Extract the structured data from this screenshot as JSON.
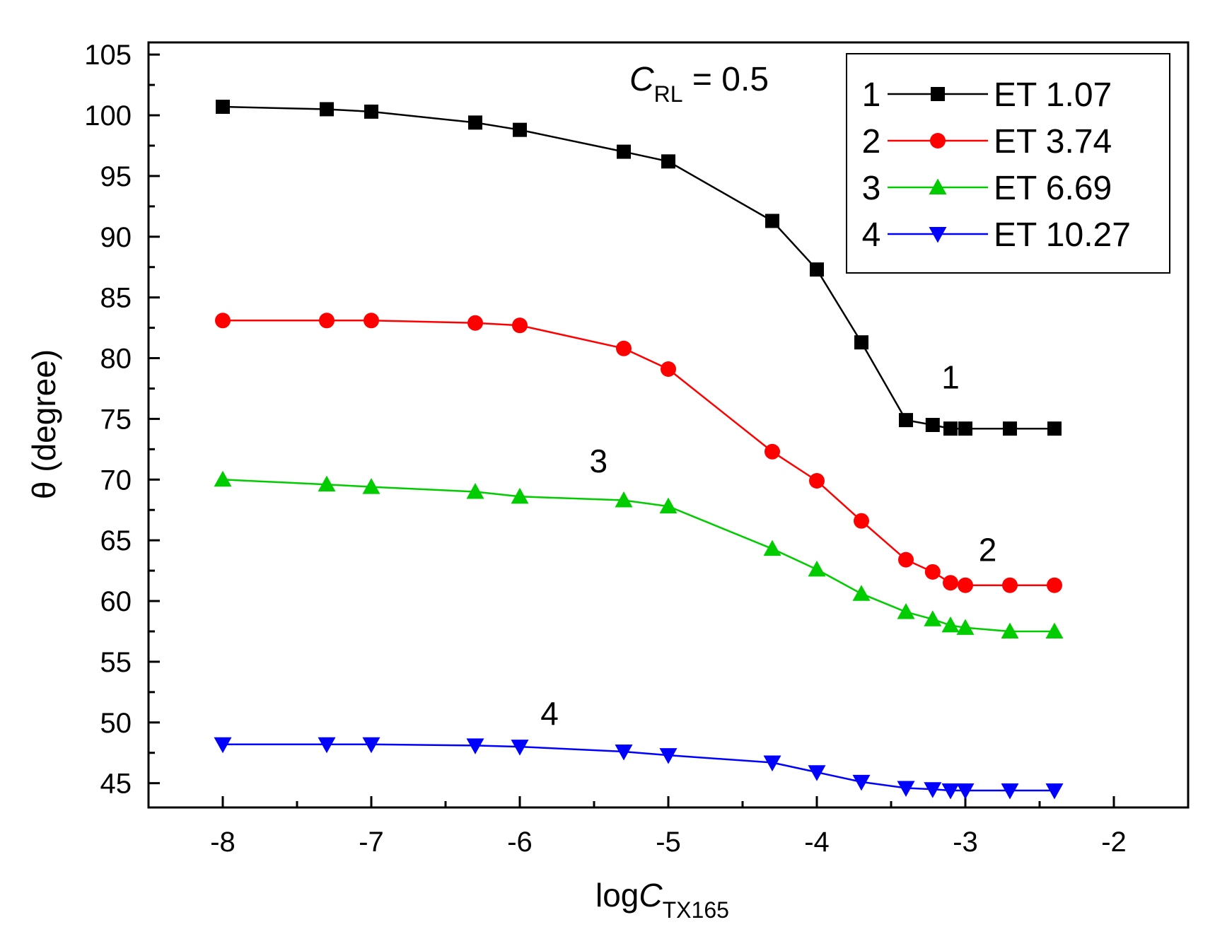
{
  "chart_data": {
    "type": "line",
    "annotation": {
      "symbol": "C",
      "subscript": "RL",
      "rest": " = 0.5"
    },
    "xlabel": {
      "prefix": "log",
      "symbol": "C",
      "subscript": "TX165"
    },
    "ylabel": "θ (degree)",
    "xlim": [
      -8.5,
      -1.5
    ],
    "ylim": [
      43,
      106
    ],
    "xticks": [
      -8,
      -7,
      -6,
      -5,
      -4,
      -3,
      -2
    ],
    "xtick_labels": [
      "-8",
      "-7",
      "-6",
      "-5",
      "-4",
      "-3",
      "-2"
    ],
    "yticks": [
      45,
      50,
      55,
      60,
      65,
      70,
      75,
      80,
      85,
      90,
      95,
      100,
      105
    ],
    "ytick_labels": [
      "45",
      "50",
      "55",
      "60",
      "65",
      "70",
      "75",
      "80",
      "85",
      "90",
      "95",
      "100",
      "105"
    ],
    "x": [
      -8,
      -7.3,
      -7,
      -6.3,
      -6,
      -5.3,
      -5,
      -4.3,
      -4,
      -3.7,
      -3.4,
      -3.22,
      -3.1,
      -3,
      -2.7,
      -2.4
    ],
    "legend_position": "top-right",
    "grid": false,
    "series": [
      {
        "name": "ET 1.07",
        "number": "1",
        "marker": "square",
        "color": "#000000",
        "values": [
          100.7,
          100.5,
          100.3,
          99.4,
          98.8,
          97.0,
          96.2,
          91.3,
          87.3,
          81.3,
          74.9,
          74.5,
          74.2,
          74.2,
          74.2,
          74.2
        ]
      },
      {
        "name": "ET 3.74",
        "number": "2",
        "marker": "circle",
        "color": "#ff0000",
        "values": [
          83.1,
          83.1,
          83.1,
          82.9,
          82.7,
          80.8,
          79.1,
          72.3,
          69.9,
          66.6,
          63.4,
          62.4,
          61.5,
          61.3,
          61.3,
          61.3
        ]
      },
      {
        "name": "ET 6.69",
        "number": "3",
        "marker": "triangle-up",
        "color": "#00cc00",
        "values": [
          70.0,
          69.6,
          69.4,
          69.0,
          68.6,
          68.3,
          67.8,
          64.3,
          62.6,
          60.6,
          59.1,
          58.5,
          58.0,
          57.8,
          57.5,
          57.5
        ]
      },
      {
        "name": "ET 10.27",
        "number": "4",
        "marker": "triangle-down",
        "color": "#0000ff",
        "values": [
          48.2,
          48.2,
          48.2,
          48.1,
          48.0,
          47.6,
          47.3,
          46.7,
          45.9,
          45.1,
          44.6,
          44.5,
          44.4,
          44.4,
          44.4,
          44.4
        ]
      }
    ],
    "curve_labels": [
      {
        "text": "1",
        "x": -3.1,
        "y": 77.5
      },
      {
        "text": "2",
        "x": -2.85,
        "y": 63.3
      },
      {
        "text": "3",
        "x": -5.47,
        "y": 70.6
      },
      {
        "text": "4",
        "x": -5.8,
        "y": 49.8
      }
    ]
  }
}
